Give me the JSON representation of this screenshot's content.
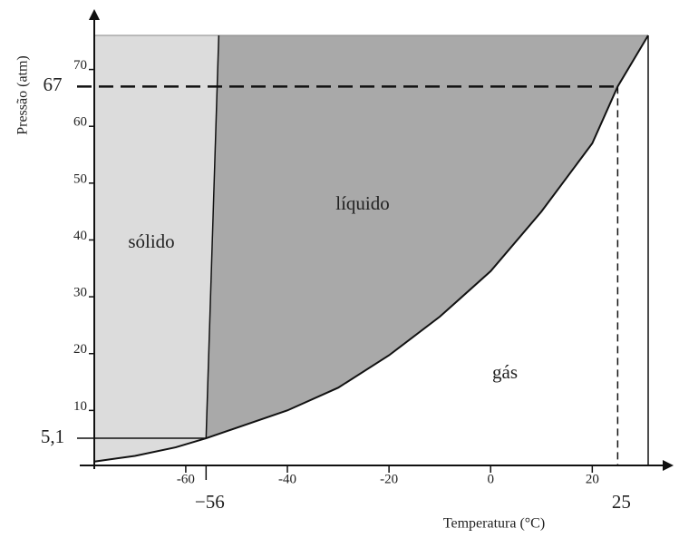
{
  "chart_data": {
    "type": "phase-diagram",
    "x_label": "Temperatura (°C)",
    "y_label": "Pressão (atm)",
    "xlim": [
      -78,
      31
    ],
    "ylim": [
      0,
      76
    ],
    "xticks": [
      -60,
      -40,
      -20,
      0,
      20
    ],
    "yticks": [
      10,
      20,
      30,
      40,
      50,
      60,
      70
    ],
    "curves": {
      "sublimation": {
        "x": [
          -78,
          -70,
          -62,
          -56
        ],
        "y": [
          1,
          2,
          3.5,
          5.1
        ]
      },
      "melting": {
        "x": [
          -56,
          -53.5
        ],
        "y": [
          5.1,
          76
        ]
      },
      "vaporization": {
        "x": [
          -56,
          -40,
          -30,
          -20,
          -10,
          0,
          10,
          20,
          25,
          31
        ],
        "y": [
          5.1,
          10,
          14,
          19.7,
          26.5,
          34.5,
          45,
          57,
          67,
          76
        ]
      }
    },
    "triple_point": {
      "temperature": {
        "value": -56,
        "label": "−56"
      },
      "pressure": {
        "value": 5.1,
        "label": "5,1"
      }
    },
    "critical_point": {
      "temperature": 25,
      "pressure": 67
    },
    "regions": [
      {
        "label": "sólido",
        "color": "#dcdcdc"
      },
      {
        "label": "líquido",
        "color": "#a9a9a9"
      },
      {
        "label": "gás",
        "color": "#ffffff"
      }
    ]
  }
}
